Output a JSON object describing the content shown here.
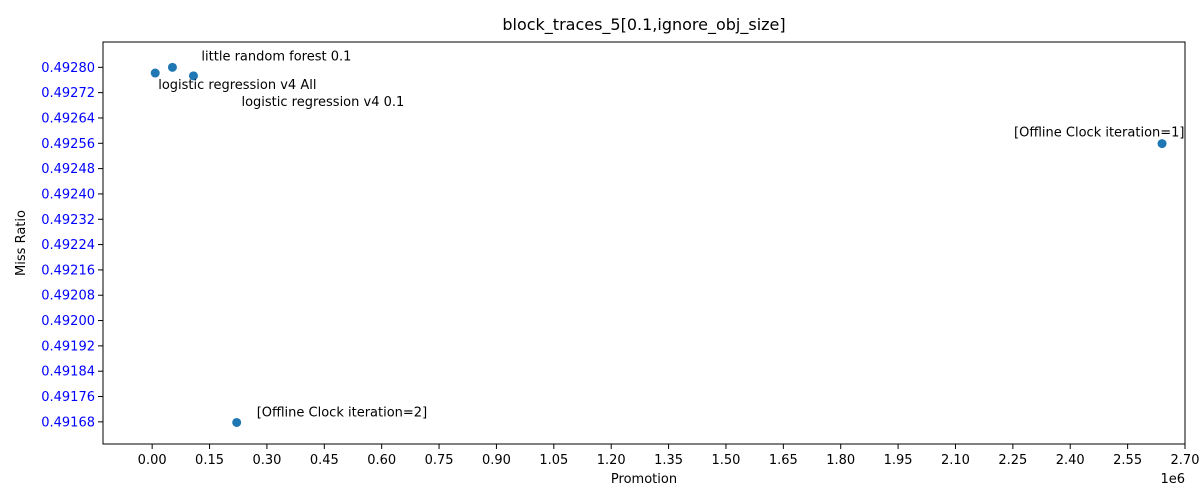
{
  "chart_data": {
    "type": "scatter",
    "title": "block_traces_5[0.1,ignore_obj_size]",
    "xlabel": "Promotion",
    "ylabel": "Miss Ratio",
    "x_offset_label": "1e6",
    "x_unit_multiplier": 1000000,
    "xlim": [
      -0.1285,
      2.7
    ],
    "ylim": [
      0.49161,
      0.49288
    ],
    "x_ticks": [
      0.0,
      0.15,
      0.3,
      0.45,
      0.6,
      0.75,
      0.9,
      1.05,
      1.2,
      1.35,
      1.5,
      1.65,
      1.8,
      1.95,
      2.1,
      2.25,
      2.4,
      2.55,
      2.7
    ],
    "x_tick_labels": [
      "0.00",
      "0.15",
      "0.30",
      "0.45",
      "0.60",
      "0.75",
      "0.90",
      "1.05",
      "1.20",
      "1.35",
      "1.50",
      "1.65",
      "1.80",
      "1.95",
      "2.10",
      "2.25",
      "2.40",
      "2.55",
      "2.70"
    ],
    "y_ticks": [
      0.49168,
      0.49176,
      0.49184,
      0.49192,
      0.492,
      0.49208,
      0.49216,
      0.49224,
      0.49232,
      0.4924,
      0.49248,
      0.49256,
      0.49264,
      0.49272,
      0.4928
    ],
    "y_tick_labels": [
      "0.49168",
      "0.49176",
      "0.49184",
      "0.49192",
      "0.49200",
      "0.49208",
      "0.49216",
      "0.49224",
      "0.49232",
      "0.49240",
      "0.49248",
      "0.49256",
      "0.49264",
      "0.49272",
      "0.49280"
    ],
    "grid": false,
    "legend": "none",
    "point_color": "#1f77b4",
    "y_tick_label_color": "#0000ff",
    "points": [
      {
        "x": 8000,
        "y": 0.492782
      },
      {
        "x": 53000,
        "y": 0.4928
      },
      {
        "x": 108000,
        "y": 0.492773
      },
      {
        "x": 2640000,
        "y": 0.492559
      },
      {
        "x": 221000,
        "y": 0.491678
      }
    ],
    "annotations": [
      {
        "text": "logistic regression v4 All",
        "x": 8000,
        "y": 0.492782
      },
      {
        "text": "little random forest 0.1",
        "x": 53000,
        "y": 0.4928
      },
      {
        "text": "logistic regression v4 0.1",
        "x": 108000,
        "y": 0.492773
      },
      {
        "text": "[Offline Clock iteration=1]",
        "x": 2640000,
        "y": 0.492559
      },
      {
        "text": "[Offline Clock iteration=2]",
        "x": 221000,
        "y": 0.491678
      }
    ]
  }
}
